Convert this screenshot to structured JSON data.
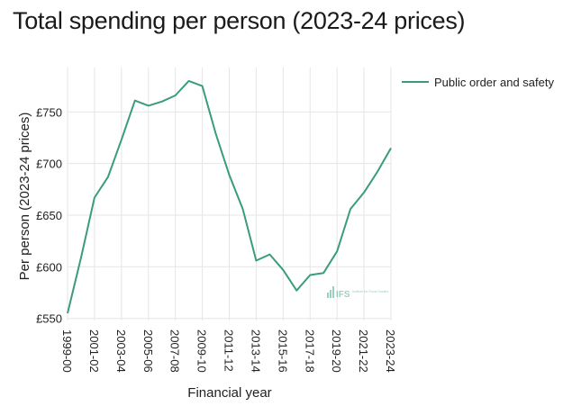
{
  "chart_data": {
    "type": "line",
    "title": "Total spending per person (2023-24 prices)",
    "xlabel": "Financial year",
    "ylabel": "Per person (2023-24 prices)",
    "ylim": [
      548,
      793
    ],
    "y_ticks": [
      550,
      600,
      650,
      700,
      750
    ],
    "y_tick_labels": [
      "£550",
      "£600",
      "£650",
      "£700",
      "£750"
    ],
    "x_tick_labels": [
      "1999-00",
      "2001-02",
      "2003-04",
      "2005-06",
      "2007-08",
      "2009-10",
      "2011-12",
      "2013-14",
      "2015-16",
      "2017-18",
      "2019-20",
      "2021-22",
      "2023-24"
    ],
    "grid": true,
    "legend_position": "top-right",
    "categories": [
      "1999-00",
      "2000-01",
      "2001-02",
      "2002-03",
      "2003-04",
      "2004-05",
      "2005-06",
      "2006-07",
      "2007-08",
      "2008-09",
      "2009-10",
      "2010-11",
      "2011-12",
      "2012-13",
      "2013-14",
      "2014-15",
      "2015-16",
      "2016-17",
      "2017-18",
      "2018-19",
      "2019-20",
      "2020-21",
      "2021-22",
      "2022-23",
      "2023-24"
    ],
    "series": [
      {
        "name": "Public order and safety",
        "color": "#3a9c7c",
        "values": [
          555,
          609,
          667,
          687,
          723,
          761,
          756,
          760,
          766,
          780,
          775,
          729,
          689,
          656,
          606,
          612,
          597,
          577,
          592,
          594,
          615,
          656,
          672,
          692,
          715
        ]
      }
    ],
    "watermark": {
      "text": "IFS",
      "subtext": "Institute for Fiscal Studies"
    }
  }
}
